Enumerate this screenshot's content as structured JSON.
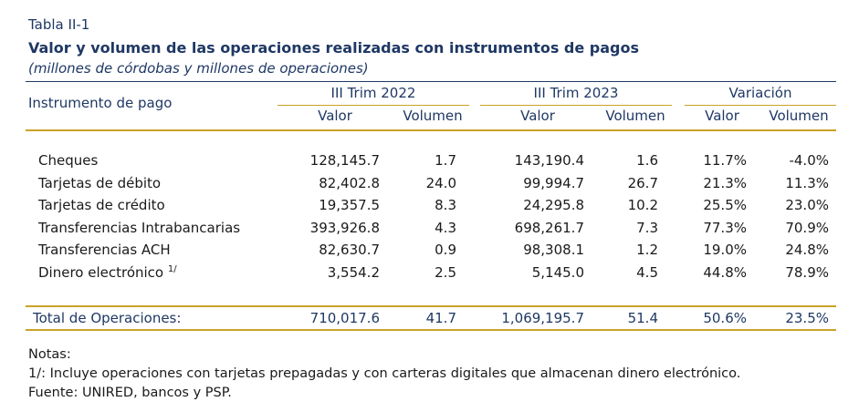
{
  "table_label": "Tabla II-1",
  "title": "Valor y volumen de las operaciones realizadas con instrumentos de pagos",
  "subtitle": "(millones de córdobas y millones de operaciones)",
  "header": {
    "instrument": "Instrumento de pago",
    "groups": [
      "III Trim 2022",
      "III Trim 2023",
      "Variación"
    ],
    "subcols": [
      "Valor",
      "Volumen",
      "Valor",
      "Volumen",
      "Valor",
      "Volumen"
    ]
  },
  "rows": [
    {
      "name": "Cheques",
      "note": "",
      "cells": [
        "128,145.7",
        "1.7",
        "143,190.4",
        "1.6",
        "11.7%",
        "-4.0%"
      ]
    },
    {
      "name": "Tarjetas de débito",
      "note": "",
      "cells": [
        "82,402.8",
        "24.0",
        "99,994.7",
        "26.7",
        "21.3%",
        "11.3%"
      ]
    },
    {
      "name": "Tarjetas de crédito",
      "note": "",
      "cells": [
        "19,357.5",
        "8.3",
        "24,295.8",
        "10.2",
        "25.5%",
        "23.0%"
      ]
    },
    {
      "name": "Transferencias Intrabancarias",
      "note": "",
      "cells": [
        "393,926.8",
        "4.3",
        "698,261.7",
        "7.3",
        "77.3%",
        "70.9%"
      ]
    },
    {
      "name": "Transferencias ACH",
      "note": "",
      "cells": [
        "82,630.7",
        "0.9",
        "98,308.1",
        "1.2",
        "19.0%",
        "24.8%"
      ]
    },
    {
      "name": "Dinero electrónico",
      "note": "1/",
      "cells": [
        "3,554.2",
        "2.5",
        "5,145.0",
        "4.5",
        "44.8%",
        "78.9%"
      ]
    }
  ],
  "total": {
    "name": "Total de Operaciones:",
    "cells": [
      "710,017.6",
      "41.7",
      "1,069,195.7",
      "51.4",
      "50.6%",
      "23.5%"
    ]
  },
  "notes": {
    "heading": "Notas:",
    "lines": [
      "1/: Incluye operaciones con tarjetas prepagadas y con carteras digitales que almacenan dinero electrónico.",
      "Fuente: UNIRED, bancos y PSP."
    ]
  }
}
